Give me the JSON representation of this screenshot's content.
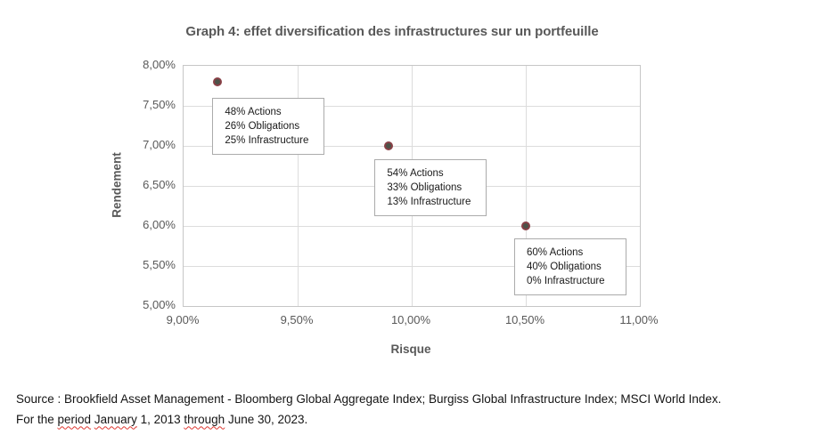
{
  "title": "Graph 4: effet diversification des infrastructures sur un portfeuille",
  "chart_data": {
    "type": "scatter",
    "title": "Graph 4: effet diversification des infrastructures sur un portfeuille",
    "xlabel": "Risque",
    "ylabel": "Rendement",
    "xlim": [
      9.0,
      11.0
    ],
    "ylim": [
      5.0,
      8.0
    ],
    "grid": true,
    "x_ticks": [
      {
        "value": 9.0,
        "label": "9,00%"
      },
      {
        "value": 9.5,
        "label": "9,50%"
      },
      {
        "value": 10.0,
        "label": "10,00%"
      },
      {
        "value": 10.5,
        "label": "10,50%"
      },
      {
        "value": 11.0,
        "label": "11,00%"
      }
    ],
    "y_ticks": [
      {
        "value": 8.0,
        "label": "8,00%"
      },
      {
        "value": 7.5,
        "label": "7,50%"
      },
      {
        "value": 7.0,
        "label": "7,00%"
      },
      {
        "value": 6.5,
        "label": "6,50%"
      },
      {
        "value": 6.0,
        "label": "6,00%"
      },
      {
        "value": 5.5,
        "label": "5,50%"
      },
      {
        "value": 5.0,
        "label": "5,00%"
      }
    ],
    "points": [
      {
        "x": 9.15,
        "y": 7.8,
        "annotation": [
          "48% Actions",
          "26% Obligations",
          "25% Infrastructure"
        ]
      },
      {
        "x": 9.9,
        "y": 7.0,
        "annotation": [
          "54% Actions",
          "33% Obligations",
          "13% Infrastructure"
        ]
      },
      {
        "x": 10.5,
        "y": 6.0,
        "annotation": [
          "60% Actions",
          "40% Obligations",
          "0% Infrastructure"
        ]
      }
    ]
  },
  "colors": {
    "marker_fill": "#4c5349",
    "marker_border": "#884046",
    "gridline": "#dcdcdc",
    "axis_text": "#595959",
    "squiggle_red": "#de3730"
  },
  "source": {
    "line1": "Source : Brookfield Asset Management - Bloomberg Global Aggregate Index; Burgiss Global Infrastructure Index; MSCI World Index.",
    "line2_parts": [
      {
        "text": "For the ",
        "misspelled": false
      },
      {
        "text": "period",
        "misspelled": true
      },
      {
        "text": " ",
        "misspelled": false
      },
      {
        "text": "January",
        "misspelled": true
      },
      {
        "text": " 1, 2013 ",
        "misspelled": false
      },
      {
        "text": "through",
        "misspelled": true
      },
      {
        "text": " June 30, 2023.",
        "misspelled": false
      }
    ]
  }
}
